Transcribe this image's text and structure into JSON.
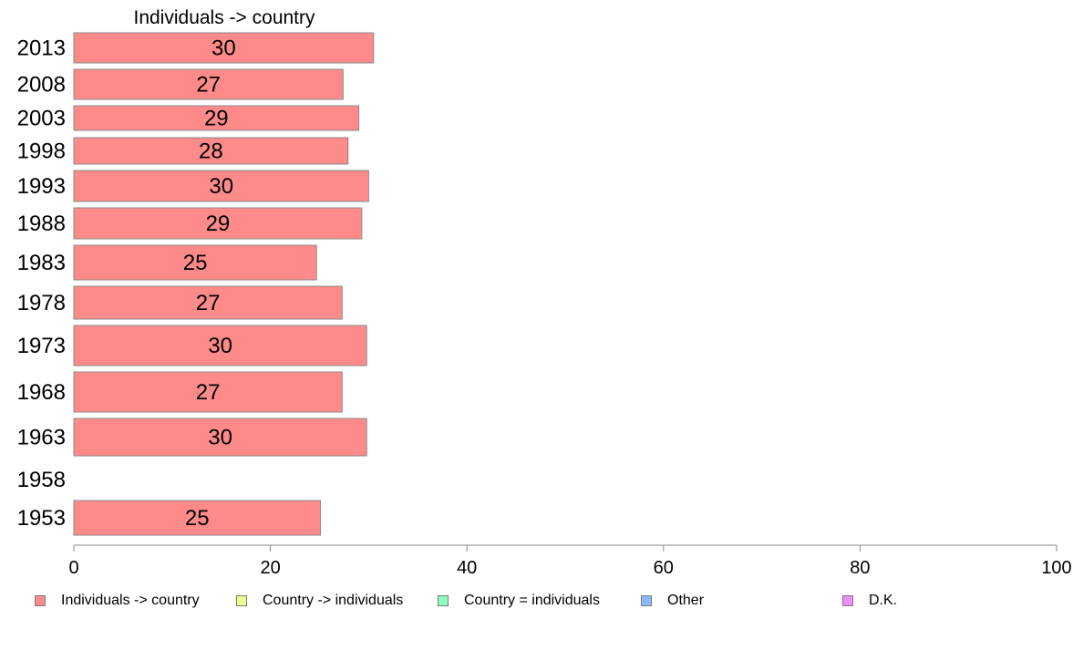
{
  "chart_data": {
    "type": "bar",
    "orientation": "horizontal",
    "title": "Individuals -> country",
    "categories": [
      "2013",
      "2008",
      "2003",
      "1998",
      "1993",
      "1988",
      "1983",
      "1978",
      "1973",
      "1968",
      "1963",
      "1958",
      "1953"
    ],
    "series": [
      {
        "name": "Individuals -> country",
        "color": "#ff8a8a",
        "values": [
          30.5,
          27.4,
          29.0,
          27.9,
          30.0,
          29.3,
          24.7,
          27.3,
          29.8,
          27.3,
          29.8,
          null,
          25.1
        ],
        "labels": [
          "30",
          "27",
          "29",
          "28",
          "30",
          "29",
          "25",
          "27",
          "30",
          "27",
          "30",
          "",
          "25"
        ]
      }
    ],
    "xlim": [
      0,
      100
    ],
    "xticks": [
      "0",
      "20",
      "40",
      "60",
      "80",
      "100"
    ],
    "grid": false,
    "legend_position": "bottom"
  },
  "legend": {
    "items": [
      {
        "label": "Individuals -> country",
        "color": "#ff8a8a"
      },
      {
        "label": "Country -> individuals",
        "color": "#f0ff8a"
      },
      {
        "label": "Country = individuals",
        "color": "#8affc0"
      },
      {
        "label": "Other",
        "color": "#8ab8ff"
      },
      {
        "label": "D.K.",
        "color": "#f08aff"
      }
    ]
  }
}
